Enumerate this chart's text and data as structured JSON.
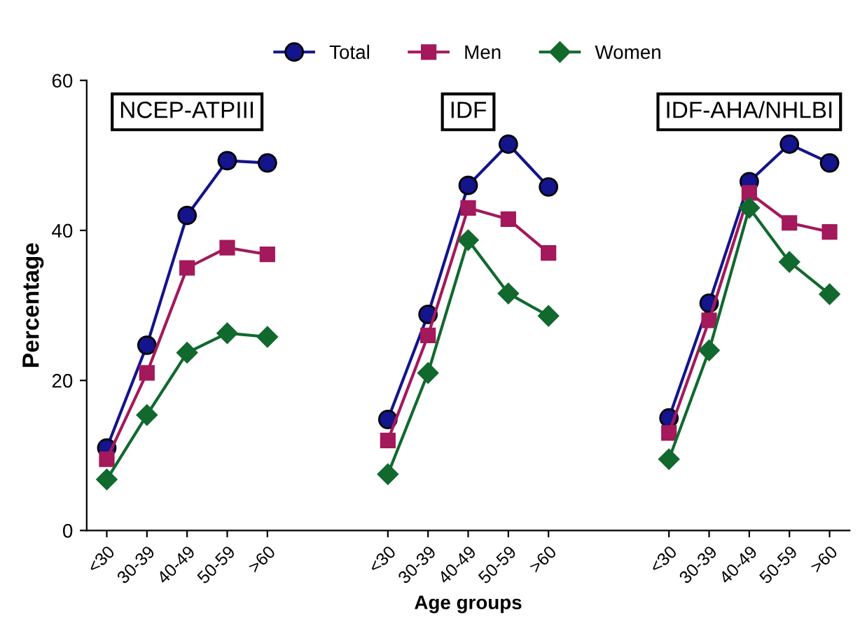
{
  "chart_data": {
    "type": "line",
    "xlabel": "Age groups",
    "ylabel": "Percentage",
    "categories": [
      "<30",
      "30-39",
      "40-49",
      "50-59",
      ">60",
      null,
      null,
      "<30",
      "30-39",
      "40-49",
      "50-59",
      ">60",
      null,
      null,
      "<30",
      "30-39",
      "40-49",
      "50-59",
      ">60"
    ],
    "series": [
      {
        "name": "Total",
        "color": "#14148c",
        "marker": "circle",
        "values": [
          11,
          24.7,
          42,
          49.3,
          49,
          null,
          null,
          14.8,
          28.8,
          46,
          51.5,
          45.8,
          null,
          null,
          15,
          30.3,
          46.5,
          51.5,
          49
        ]
      },
      {
        "name": "Men",
        "color": "#a3195b",
        "marker": "square",
        "values": [
          9.5,
          21,
          35,
          37.7,
          36.8,
          null,
          null,
          12,
          26,
          43,
          41.5,
          37,
          null,
          null,
          13,
          28,
          45,
          41,
          39.8
        ]
      },
      {
        "name": "Women",
        "color": "#11692e",
        "marker": "diamond",
        "values": [
          6.8,
          15.4,
          23.7,
          26.3,
          25.8,
          null,
          null,
          7.5,
          21,
          38.7,
          31.6,
          28.6,
          null,
          null,
          9.5,
          24,
          43,
          35.8,
          31.5
        ]
      }
    ],
    "annotations": [
      "NCEP-ATPIII",
      "IDF",
      "IDF-AHA/NHLBI"
    ],
    "ylim": [
      0,
      60
    ],
    "yticks": [
      0,
      20,
      40,
      60
    ],
    "grid": false,
    "legend": "top",
    "line_style": "solid"
  }
}
